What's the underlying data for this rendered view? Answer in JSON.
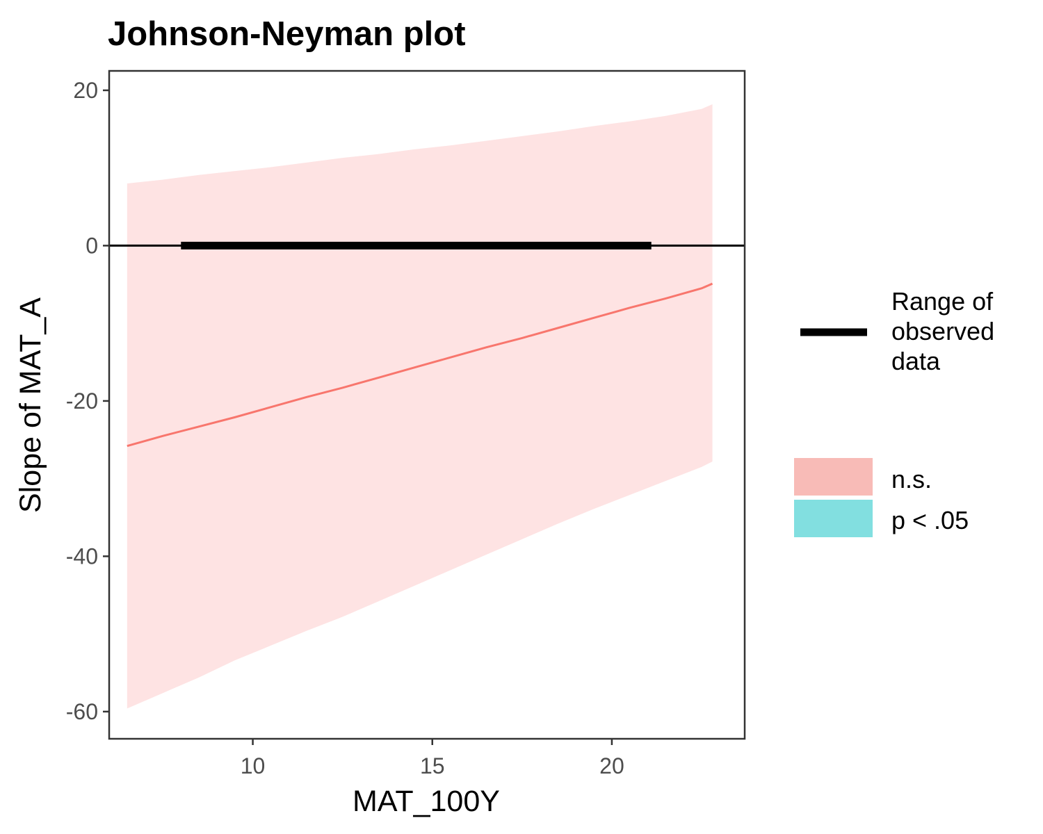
{
  "chart_data": {
    "type": "line",
    "title": "Johnson-Neyman plot",
    "xlabel": "MAT_100Y",
    "ylabel": "Slope of MAT_A",
    "xlim": [
      6.0,
      23.7
    ],
    "ylim": [
      -63.5,
      22.5
    ],
    "x_ticks": [
      10,
      15,
      20
    ],
    "y_ticks": [
      20,
      0,
      -20,
      -40,
      -60
    ],
    "grid": false,
    "legend_position": "right",
    "series": [
      {
        "x": [
          6.5,
          7.5,
          8.5,
          9.5,
          10.5,
          11.5,
          12.5,
          13.5,
          14.5,
          15.5,
          16.5,
          17.5,
          18.5,
          19.5,
          20.5,
          21.5,
          22.5,
          22.8
        ],
        "y": [
          -25.8,
          -24.5,
          -23.3,
          -22.1,
          -20.8,
          -19.5,
          -18.3,
          -17.0,
          -15.7,
          -14.4,
          -13.1,
          -11.9,
          -10.6,
          -9.3,
          -8.0,
          -6.8,
          -5.5,
          -4.9
        ],
        "upper": [
          8.0,
          8.5,
          9.1,
          9.6,
          10.1,
          10.7,
          11.3,
          11.8,
          12.4,
          12.9,
          13.5,
          14.1,
          14.7,
          15.4,
          16.0,
          16.7,
          17.6,
          18.2
        ],
        "lower": [
          -59.6,
          -57.6,
          -55.6,
          -53.4,
          -51.5,
          -49.6,
          -47.8,
          -45.8,
          -43.8,
          -41.8,
          -39.8,
          -37.8,
          -35.8,
          -33.9,
          -32.1,
          -30.3,
          -28.5,
          -27.8
        ],
        "significance": "n.s.",
        "color": "#f8766d",
        "band_color": "#fee3e3"
      }
    ],
    "observed_range": [
      8.0,
      21.1
    ],
    "zero_line": 0,
    "legend": [
      {
        "label": "Range of\nobserved\ndata",
        "kind": "line",
        "color": "#000000"
      },
      {
        "label": "n.s.",
        "kind": "fill",
        "color": "#f8bbb7"
      },
      {
        "label": "p < .05",
        "kind": "fill",
        "color": "#82dfe0"
      }
    ]
  }
}
